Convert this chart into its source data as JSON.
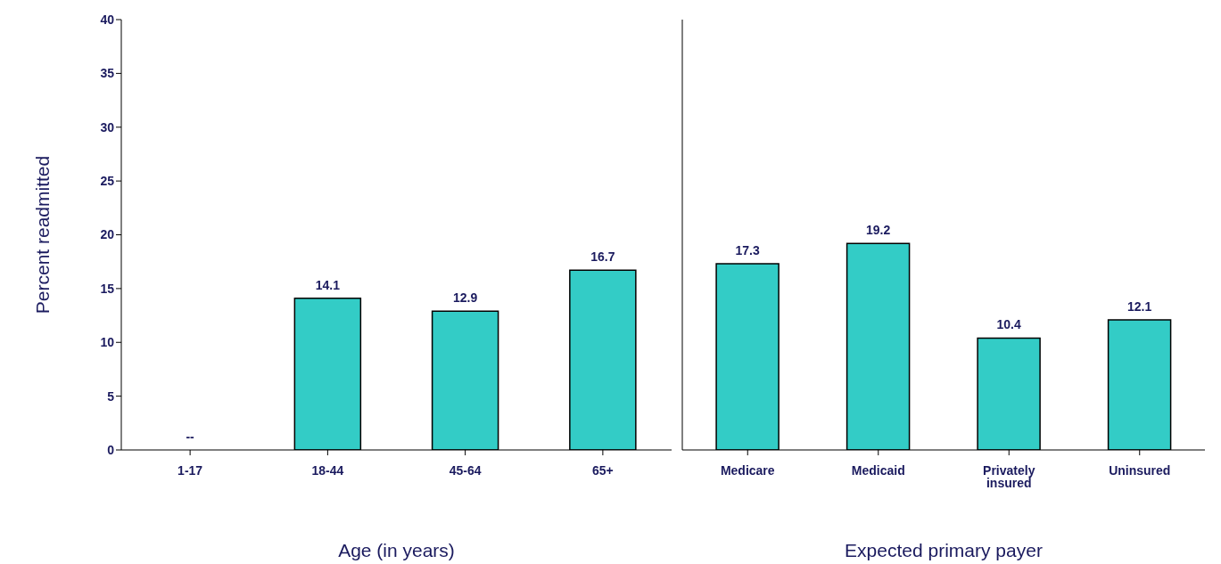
{
  "chart_data": [
    {
      "type": "bar",
      "categories": [
        "1-17",
        "18-44",
        "45-64",
        "65+"
      ],
      "values": [
        null,
        14.1,
        12.9,
        16.7
      ],
      "value_labels": [
        "--",
        "14.1",
        "12.9",
        "16.7"
      ],
      "color": "#33ccc6",
      "ylim": [
        0,
        40
      ],
      "yticks": [
        0,
        5,
        10,
        15,
        20,
        25,
        30,
        35,
        40
      ],
      "ylabel": "Percent readmitted",
      "xlabel": "Age (in years)"
    },
    {
      "type": "bar",
      "categories": [
        "Medicare",
        "Medicaid",
        "Privately insured",
        "Uninsured"
      ],
      "values": [
        17.3,
        19.2,
        10.4,
        12.1
      ],
      "data_labels": true,
      "color": "#33ccc6",
      "ylim": [
        0,
        40
      ],
      "yticks": [
        0,
        5,
        10,
        15,
        20,
        25,
        30,
        35,
        40
      ],
      "tick_labels": "x",
      "xlabel": "Expected primary payer"
    }
  ]
}
